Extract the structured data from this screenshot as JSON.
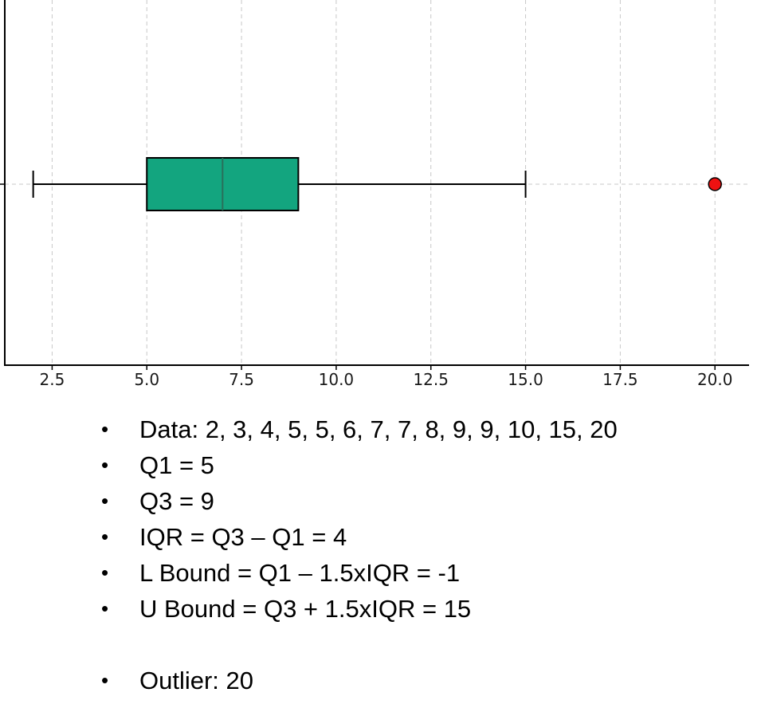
{
  "chart_data": {
    "type": "boxplot",
    "orientation": "horizontal",
    "xlim": [
      1.25,
      20.9
    ],
    "x_ticks": [
      "2.5",
      "5.0",
      "7.5",
      "10.0",
      "12.5",
      "15.0",
      "17.5",
      "20.0"
    ],
    "x_tick_values": [
      2.5,
      5.0,
      7.5,
      10.0,
      12.5,
      15.0,
      17.5,
      20.0
    ],
    "grid": true,
    "box": {
      "whisker_low": 2,
      "q1": 5,
      "median": 7,
      "q3": 9,
      "whisker_high": 15
    },
    "outliers": [
      20
    ],
    "colors": {
      "box_fill": "#13a57f",
      "outlier": "#ee1111",
      "median": "#2a6f5a"
    }
  },
  "notes": [
    "Data: 2, 3, 4, 5, 5, 6, 7, 7, 8, 9, 9, 10, 15, 20",
    "Q1 = 5",
    "Q3 = 9",
    "IQR = Q3 – Q1 = 4",
    "L Bound = Q1 – 1.5xIQR = -1",
    "U Bound = Q3 + 1.5xIQR = 15",
    "",
    "Outlier: 20"
  ],
  "bullet_char": "•"
}
